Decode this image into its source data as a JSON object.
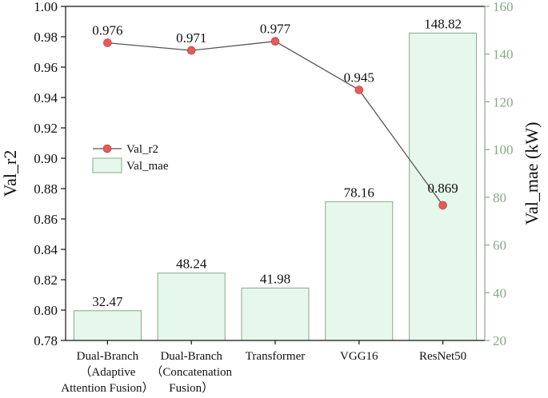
{
  "chart_data": {
    "type": "bar+line",
    "categories": [
      [
        "Dual-Branch",
        "（Adaptive",
        "Attention Fusion）"
      ],
      [
        "Dual-Branch",
        "（Concatenation",
        "Fusion）"
      ],
      [
        "Transformer"
      ],
      [
        "VGG16"
      ],
      [
        "ResNet50"
      ]
    ],
    "series": [
      {
        "name": "Val_r2",
        "type": "line",
        "axis": "left",
        "values": [
          0.976,
          0.971,
          0.977,
          0.945,
          0.869
        ],
        "labels": [
          "0.976",
          "0.971",
          "0.977",
          "0.945",
          "0.869"
        ],
        "color": "#e8595a",
        "line_color": "#555555"
      },
      {
        "name": "Val_mae",
        "type": "bar",
        "axis": "right",
        "values": [
          32.47,
          48.24,
          41.98,
          78.16,
          148.82
        ],
        "labels": [
          "32.47",
          "48.24",
          "41.98",
          "78.16",
          "148.82"
        ],
        "color": "#e6f8ec",
        "edge_color": "#8aa88a"
      }
    ],
    "ylabel": "Val_r2",
    "ylabel_right": "Val_mae (kW)",
    "ylim": [
      0.78,
      1.0
    ],
    "yticks": [
      "0.78",
      "0.80",
      "0.82",
      "0.84",
      "0.86",
      "0.88",
      "0.90",
      "0.92",
      "0.94",
      "0.96",
      "0.98",
      "1.00"
    ],
    "ylim_right": [
      20,
      160
    ],
    "yticks_right": [
      "20",
      "40",
      "60",
      "80",
      "100",
      "120",
      "140",
      "160"
    ],
    "right_axis_color": "#8aa88a",
    "grid": false,
    "legend_position": "center-left"
  }
}
